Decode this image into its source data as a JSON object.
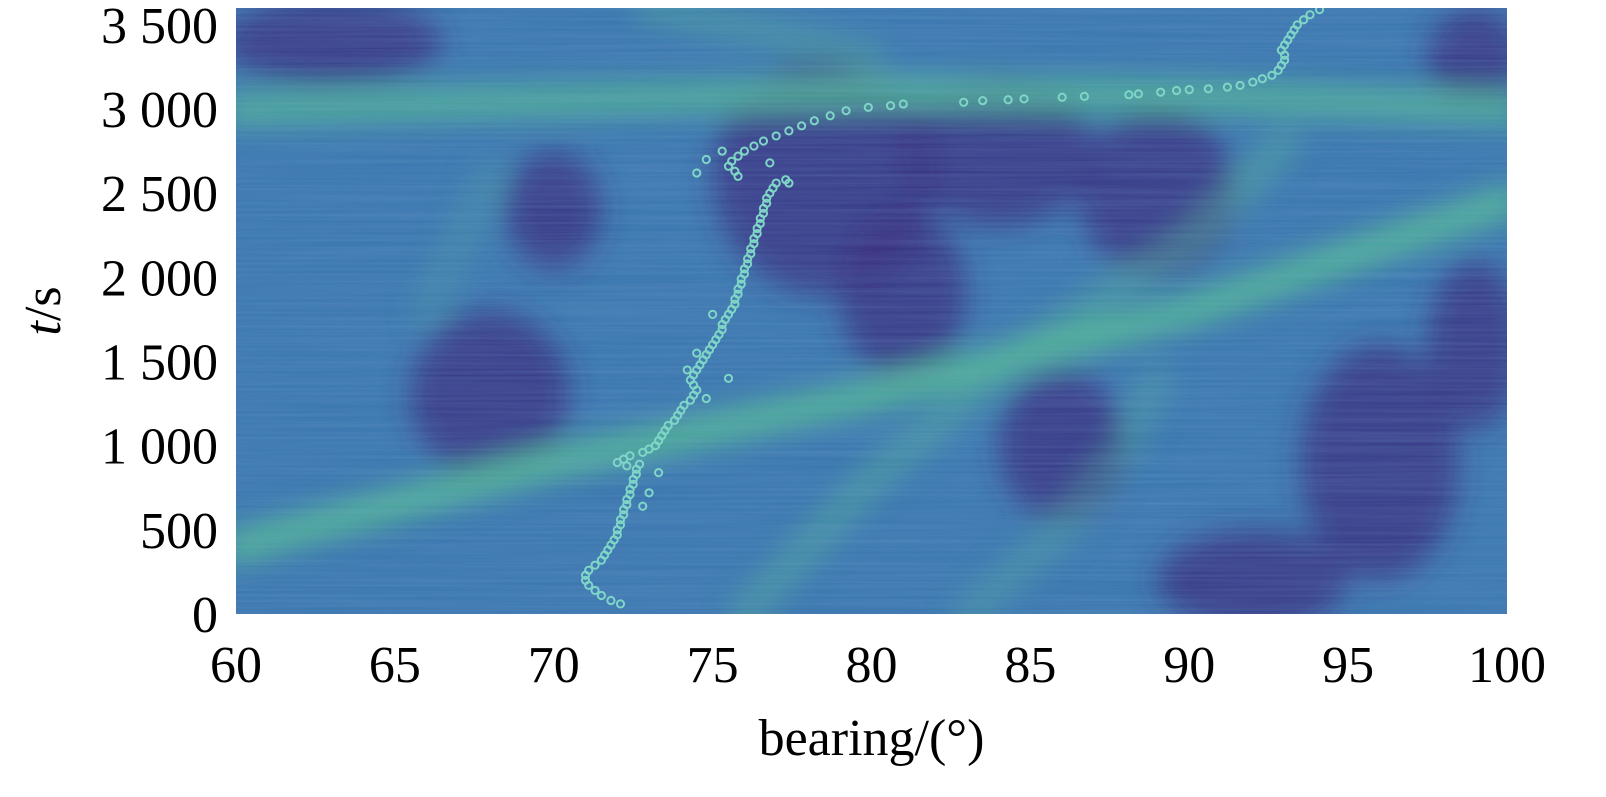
{
  "chart_data": {
    "type": "heatmap",
    "title": "",
    "xlabel": "bearing/(°)",
    "ylabel_italic": "t",
    "ylabel_rest": "/s",
    "xlim": [
      60,
      100
    ],
    "ylim": [
      0,
      3600
    ],
    "x_ticks": [
      60,
      65,
      70,
      75,
      80,
      85,
      90,
      95,
      100
    ],
    "x_tick_labels": [
      "60",
      "65",
      "70",
      "75",
      "80",
      "85",
      "90",
      "95",
      "100"
    ],
    "y_ticks": [
      0,
      500,
      1000,
      1500,
      2000,
      2500,
      3000,
      3500
    ],
    "y_tick_labels": [
      "0",
      "500",
      "1 000",
      "1 500",
      "2 000",
      "2 500",
      "3 000",
      "3 500"
    ],
    "grid": false,
    "colors": {
      "low": "#3b2f7e",
      "mid": "#3d78b0",
      "high": "#52b597",
      "marker": "#7fd6c6"
    },
    "background_tracks": [
      {
        "points": [
          [
            60,
            400
          ],
          [
            70,
            900
          ],
          [
            80,
            1300
          ],
          [
            90,
            1800
          ],
          [
            100,
            2450
          ]
        ],
        "strength": 1.0
      },
      {
        "points": [
          [
            60,
            3000
          ],
          [
            70,
            3050
          ],
          [
            80,
            3100
          ],
          [
            90,
            3080
          ],
          [
            100,
            3000
          ]
        ],
        "strength": 0.9
      },
      {
        "points": [
          [
            76,
            0
          ],
          [
            80,
            800
          ],
          [
            85,
            1600
          ],
          [
            90,
            2200
          ],
          [
            93,
            2800
          ]
        ],
        "strength": 0.45
      },
      {
        "points": [
          [
            83,
            0
          ],
          [
            86,
            500
          ],
          [
            88,
            1000
          ],
          [
            89,
            1400
          ]
        ],
        "strength": 0.35
      },
      {
        "points": [
          [
            73,
            3600
          ],
          [
            78,
            3400
          ],
          [
            80,
            3300
          ]
        ],
        "strength": 0.4
      },
      {
        "points": [
          [
            66,
            1800
          ],
          [
            67,
            2200
          ],
          [
            68,
            2600
          ]
        ],
        "strength": 0.25
      }
    ],
    "tracked_points": [
      [
        72.1,
        60
      ],
      [
        71.8,
        80
      ],
      [
        71.5,
        110
      ],
      [
        71.3,
        140
      ],
      [
        71.1,
        170
      ],
      [
        71.0,
        200
      ],
      [
        71.0,
        230
      ],
      [
        71.1,
        260
      ],
      [
        71.3,
        290
      ],
      [
        71.5,
        320
      ],
      [
        71.6,
        350
      ],
      [
        71.7,
        380
      ],
      [
        71.8,
        410
      ],
      [
        71.9,
        440
      ],
      [
        72.0,
        470
      ],
      [
        72.0,
        500
      ],
      [
        72.1,
        530
      ],
      [
        72.1,
        560
      ],
      [
        72.2,
        590
      ],
      [
        72.2,
        620
      ],
      [
        72.3,
        650
      ],
      [
        72.3,
        680
      ],
      [
        72.4,
        710
      ],
      [
        72.4,
        740
      ],
      [
        72.5,
        770
      ],
      [
        72.5,
        800
      ],
      [
        72.6,
        830
      ],
      [
        72.6,
        860
      ],
      [
        72.7,
        890
      ],
      [
        72.0,
        900
      ],
      [
        72.2,
        920
      ],
      [
        72.4,
        940
      ],
      [
        72.8,
        960
      ],
      [
        73.0,
        980
      ],
      [
        73.2,
        1000
      ],
      [
        73.3,
        1030
      ],
      [
        73.4,
        1060
      ],
      [
        73.5,
        1090
      ],
      [
        73.6,
        1120
      ],
      [
        73.8,
        1150
      ],
      [
        73.9,
        1180
      ],
      [
        74.0,
        1210
      ],
      [
        74.1,
        1240
      ],
      [
        74.3,
        1270
      ],
      [
        74.4,
        1300
      ],
      [
        74.5,
        1330
      ],
      [
        74.4,
        1360
      ],
      [
        74.3,
        1390
      ],
      [
        74.4,
        1420
      ],
      [
        74.5,
        1450
      ],
      [
        74.6,
        1480
      ],
      [
        74.7,
        1510
      ],
      [
        74.8,
        1540
      ],
      [
        74.9,
        1570
      ],
      [
        75.0,
        1600
      ],
      [
        75.1,
        1630
      ],
      [
        75.2,
        1660
      ],
      [
        75.3,
        1690
      ],
      [
        75.3,
        1720
      ],
      [
        75.4,
        1750
      ],
      [
        75.5,
        1780
      ],
      [
        75.6,
        1810
      ],
      [
        75.7,
        1840
      ],
      [
        75.7,
        1870
      ],
      [
        75.8,
        1900
      ],
      [
        75.8,
        1930
      ],
      [
        75.9,
        1960
      ],
      [
        75.9,
        1990
      ],
      [
        76.0,
        2020
      ],
      [
        76.0,
        2050
      ],
      [
        76.1,
        2080
      ],
      [
        76.1,
        2110
      ],
      [
        76.2,
        2140
      ],
      [
        76.2,
        2170
      ],
      [
        76.3,
        2200
      ],
      [
        76.3,
        2230
      ],
      [
        76.4,
        2260
      ],
      [
        76.4,
        2290
      ],
      [
        76.5,
        2320
      ],
      [
        76.5,
        2350
      ],
      [
        76.6,
        2380
      ],
      [
        76.6,
        2410
      ],
      [
        76.7,
        2440
      ],
      [
        76.7,
        2470
      ],
      [
        76.8,
        2500
      ],
      [
        76.9,
        2530
      ],
      [
        77.0,
        2560
      ],
      [
        77.3,
        2580
      ],
      [
        75.8,
        2600
      ],
      [
        75.7,
        2630
      ],
      [
        75.5,
        2660
      ],
      [
        75.6,
        2690
      ],
      [
        75.8,
        2720
      ],
      [
        76.0,
        2750
      ],
      [
        76.3,
        2780
      ],
      [
        76.6,
        2810
      ],
      [
        77.0,
        2840
      ],
      [
        77.4,
        2870
      ],
      [
        77.8,
        2900
      ],
      [
        78.2,
        2930
      ],
      [
        78.7,
        2960
      ],
      [
        79.2,
        2990
      ],
      [
        79.9,
        3010
      ],
      [
        80.6,
        3020
      ],
      [
        81.0,
        3030
      ],
      [
        82.9,
        3040
      ],
      [
        83.5,
        3050
      ],
      [
        84.3,
        3055
      ],
      [
        84.8,
        3060
      ],
      [
        86.0,
        3070
      ],
      [
        86.7,
        3075
      ],
      [
        88.1,
        3085
      ],
      [
        88.4,
        3090
      ],
      [
        89.1,
        3100
      ],
      [
        89.6,
        3110
      ],
      [
        90.0,
        3115
      ],
      [
        90.6,
        3120
      ],
      [
        91.2,
        3130
      ],
      [
        91.6,
        3140
      ],
      [
        92.0,
        3160
      ],
      [
        92.3,
        3180
      ],
      [
        92.6,
        3200
      ],
      [
        92.8,
        3230
      ],
      [
        92.9,
        3260
      ],
      [
        93.0,
        3290
      ],
      [
        93.0,
        3320
      ],
      [
        92.9,
        3350
      ],
      [
        93.0,
        3380
      ],
      [
        93.1,
        3410
      ],
      [
        93.2,
        3440
      ],
      [
        93.3,
        3470
      ],
      [
        93.4,
        3500
      ],
      [
        93.6,
        3530
      ],
      [
        93.8,
        3560
      ],
      [
        94.1,
        3590
      ],
      [
        74.5,
        2620
      ],
      [
        75.3,
        2750
      ],
      [
        74.8,
        2700
      ],
      [
        76.8,
        2680
      ],
      [
        77.4,
        2560
      ],
      [
        74.8,
        1280
      ],
      [
        75.5,
        1400
      ],
      [
        74.2,
        1450
      ],
      [
        75.0,
        1780
      ],
      [
        73.0,
        720
      ],
      [
        72.8,
        640
      ],
      [
        72.3,
        880
      ],
      [
        73.3,
        840
      ],
      [
        74.5,
        1550
      ]
    ]
  }
}
